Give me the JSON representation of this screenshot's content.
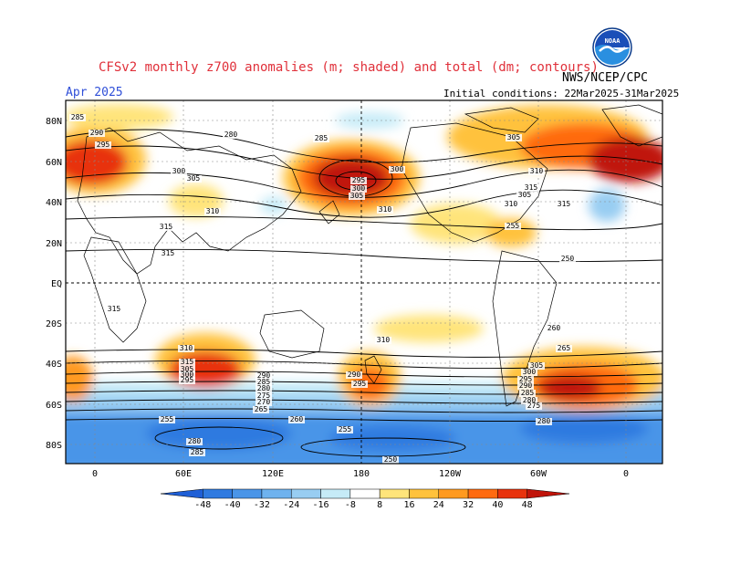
{
  "header": {
    "title": "CFSv2 monthly z700 anomalies (m; shaded) and total (dm; contours)",
    "month": "Apr 2025",
    "initial_conditions": "Initial conditions: 22Mar2025-31Mar2025",
    "agency": "NWS/NCEP/CPC",
    "logo_text": "NOAA"
  },
  "map": {
    "lat_labels": [
      "80N",
      "60N",
      "40N",
      "20N",
      "EQ",
      "20S",
      "40S",
      "60S",
      "80S"
    ],
    "lon_labels": [
      "0",
      "60E",
      "120E",
      "180",
      "120W",
      "60W",
      "0"
    ],
    "contour_labels": [
      "285",
      "290",
      "295",
      "300",
      "305",
      "310",
      "315",
      "280",
      "285",
      "295",
      "300",
      "305",
      "310",
      "315",
      "310",
      "315",
      "305",
      "300",
      "295",
      "290",
      "285",
      "280",
      "275",
      "270",
      "265",
      "260",
      "255",
      "250",
      "315",
      "310",
      "305",
      "300",
      "295",
      "290",
      "285",
      "280",
      "275",
      "255",
      "280",
      "285",
      "290",
      "295",
      "300",
      "305",
      "310",
      "315",
      "305",
      "310",
      "315",
      "255",
      "250",
      "260",
      "265",
      "280"
    ]
  },
  "legend": {
    "ticks": [
      "-48",
      "-40",
      "-32",
      "-24",
      "-16",
      "-8",
      "8",
      "16",
      "24",
      "32",
      "40",
      "48"
    ],
    "colors": [
      "#1f5fd6",
      "#2f7ae0",
      "#4a95e8",
      "#6fb2ee",
      "#98cdf2",
      "#c6ebf7",
      "#ffffff",
      "#ffe47a",
      "#ffc23c",
      "#ff9a20",
      "#ff6a10",
      "#e8320c",
      "#c0140a"
    ]
  },
  "colors": {
    "title": "#e0303a",
    "month": "#2f4fd8"
  }
}
